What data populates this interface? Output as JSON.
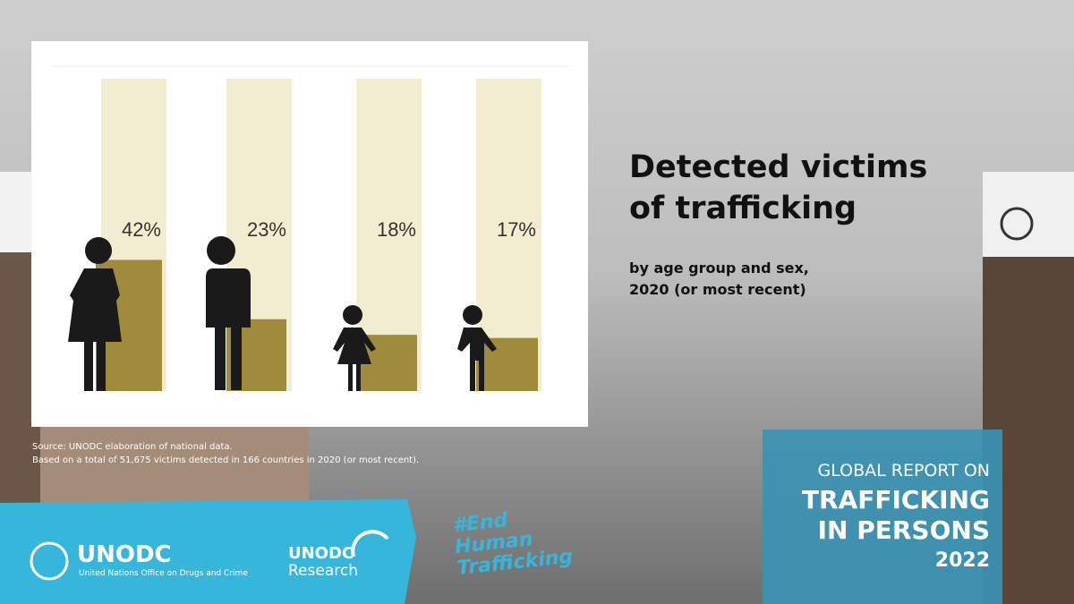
{
  "chart_data": {
    "type": "bar",
    "title": "Detected victims of trafficking",
    "subtitle": "by age group and sex, 2020 (or most recent)",
    "categories": [
      null,
      null,
      null,
      null
    ],
    "values": [
      42,
      23,
      18,
      17
    ],
    "value_labels": [
      "42%",
      "23%",
      "18%",
      "17%"
    ],
    "ylim": [
      0,
      100
    ],
    "color": "#a08a3c",
    "background_color": "#f2ecd0"
  },
  "notes": [
    "Source: UNODC elaboration of national data.",
    "Based on a total of 51,675 victims detected in 166 countries in 2020 (or most recent)."
  ],
  "branding": {
    "logo": "UNODC",
    "logo_subtitle": "United Nations Office on Drugs and Crime",
    "research_1": "UNODC",
    "research_2": "Research",
    "hashtag": "#End Human Trafficking"
  },
  "report": {
    "line1": "GLOBAL REPORT ON",
    "line2": "TRAFFICKING IN PERSONS",
    "year": "2022"
  }
}
